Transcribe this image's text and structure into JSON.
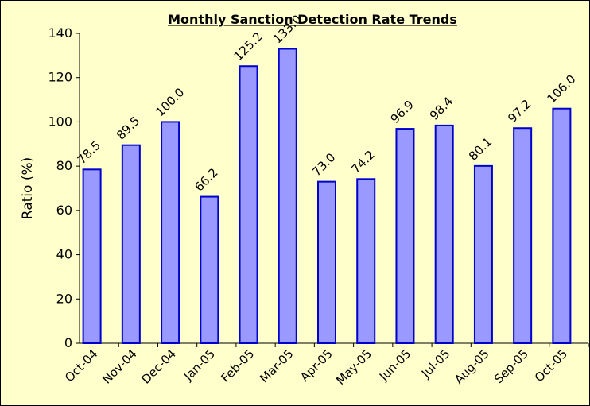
{
  "chart_data": {
    "type": "bar",
    "title": "Monthly Sanction Detection Rate Trends",
    "y_label": "Ratio (%)",
    "categories": [
      "Oct-04",
      "Nov-04",
      "Dec-04",
      "Jan-05",
      "Feb-05",
      "Mar-05",
      "Apr-05",
      "May-05",
      "Jun-05",
      "Jul-05",
      "Aug-05",
      "Sep-05",
      "Oct-05"
    ],
    "values": [
      78.5,
      89.5,
      100.0,
      66.2,
      125.2,
      133.0,
      73.0,
      74.2,
      96.9,
      98.4,
      80.1,
      97.2,
      106.0
    ],
    "value_labels": [
      "78.5",
      "89.5",
      "100.0",
      "66.2",
      "125.2",
      "133.0",
      "73.0",
      "74.2",
      "96.9",
      "98.4",
      "80.1",
      "97.2",
      "106.0"
    ],
    "color": "#9999ff",
    "ylim": [
      0,
      140
    ],
    "yticks": [
      0,
      20,
      40,
      60,
      80,
      100,
      120,
      140
    ]
  }
}
